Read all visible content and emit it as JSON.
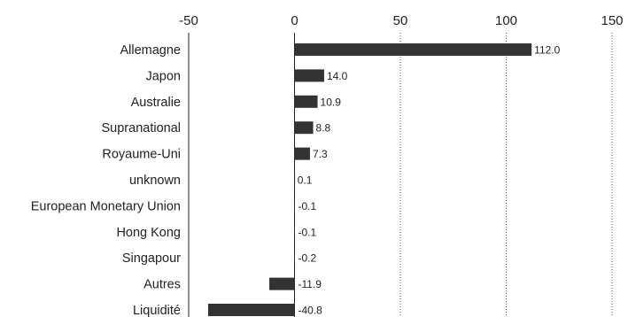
{
  "chart_data": {
    "type": "bar",
    "orientation": "horizontal",
    "categories": [
      "Allemagne",
      "Japon",
      "Australie",
      "Supranational",
      "Royaume-Uni",
      "unknown",
      "European Monetary Union",
      "Hong Kong",
      "Singapour",
      "Autres",
      "Liquidité"
    ],
    "values": [
      112.0,
      14.0,
      10.9,
      8.8,
      7.3,
      0.1,
      -0.1,
      -0.1,
      -0.2,
      -11.9,
      -40.8
    ],
    "value_labels": [
      "112.0",
      "14.0",
      "10.9",
      "8.8",
      "7.3",
      "0.1",
      "-0.1",
      "-0.1",
      "-0.2",
      "-11.9",
      "-40.8"
    ],
    "x_ticks": [
      -50,
      0,
      50,
      100,
      150
    ],
    "x_tick_labels": [
      "-50",
      "0",
      "50",
      "100",
      "150"
    ],
    "xlim": [
      -50,
      150
    ],
    "x_axis_position": "top",
    "grid": "vertical dotted",
    "bar_color": "#333333",
    "title": "",
    "xlabel": "",
    "ylabel": ""
  }
}
